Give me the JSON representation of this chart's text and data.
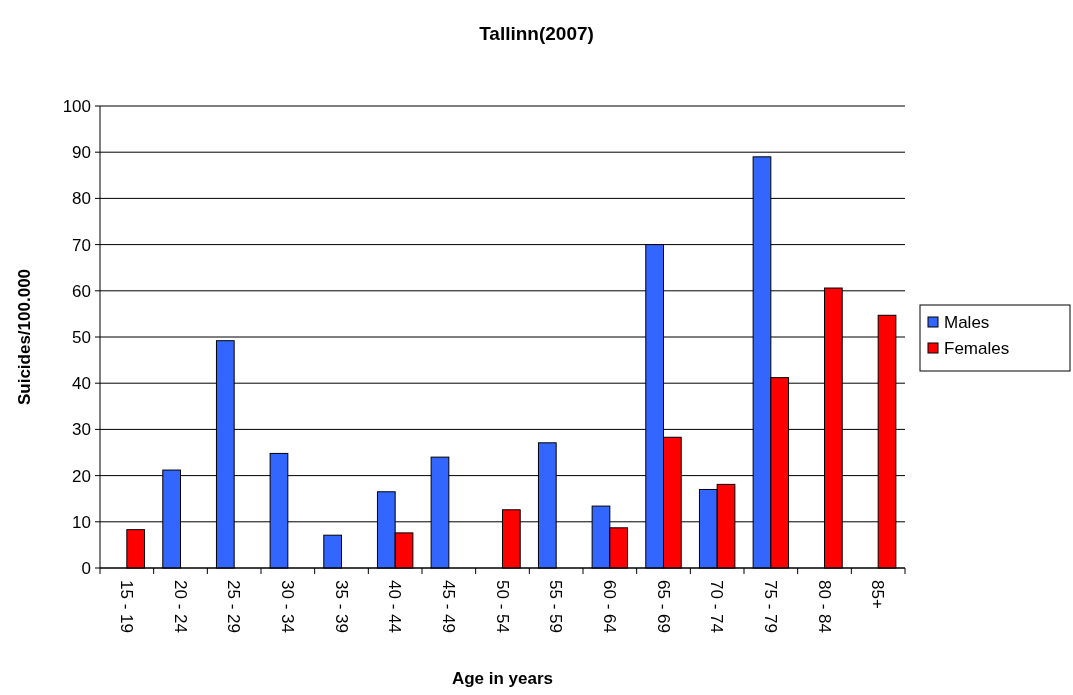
{
  "chart_data": {
    "type": "bar",
    "title": "Tallinn(2007)",
    "xlabel": "Age in years",
    "ylabel": "Suicides/100.000",
    "categories": [
      "15 - 19",
      "20 - 24",
      "25 - 29",
      "30 - 34",
      "35 - 39",
      "40 - 44",
      "45 - 49",
      "50 - 54",
      "55 - 59",
      "60 - 64",
      "65 - 69",
      "70 - 74",
      "75 - 79",
      "80 - 84",
      "85+"
    ],
    "series": [
      {
        "name": "Males",
        "color": "#3366ff",
        "values": [
          null,
          21.2,
          49.2,
          24.8,
          7.1,
          16.5,
          24.0,
          null,
          27.1,
          13.4,
          70.0,
          17.0,
          89.0,
          null,
          null
        ]
      },
      {
        "name": "Females",
        "color": "#ff0000",
        "values": [
          8.3,
          null,
          null,
          null,
          null,
          7.6,
          null,
          12.6,
          null,
          8.7,
          28.3,
          18.1,
          41.2,
          60.6,
          54.7
        ]
      }
    ],
    "ylim": [
      0,
      100
    ],
    "yticks": [
      0,
      10,
      20,
      30,
      40,
      50,
      60,
      70,
      80,
      90,
      100
    ],
    "grid": "y",
    "legend": "right"
  }
}
